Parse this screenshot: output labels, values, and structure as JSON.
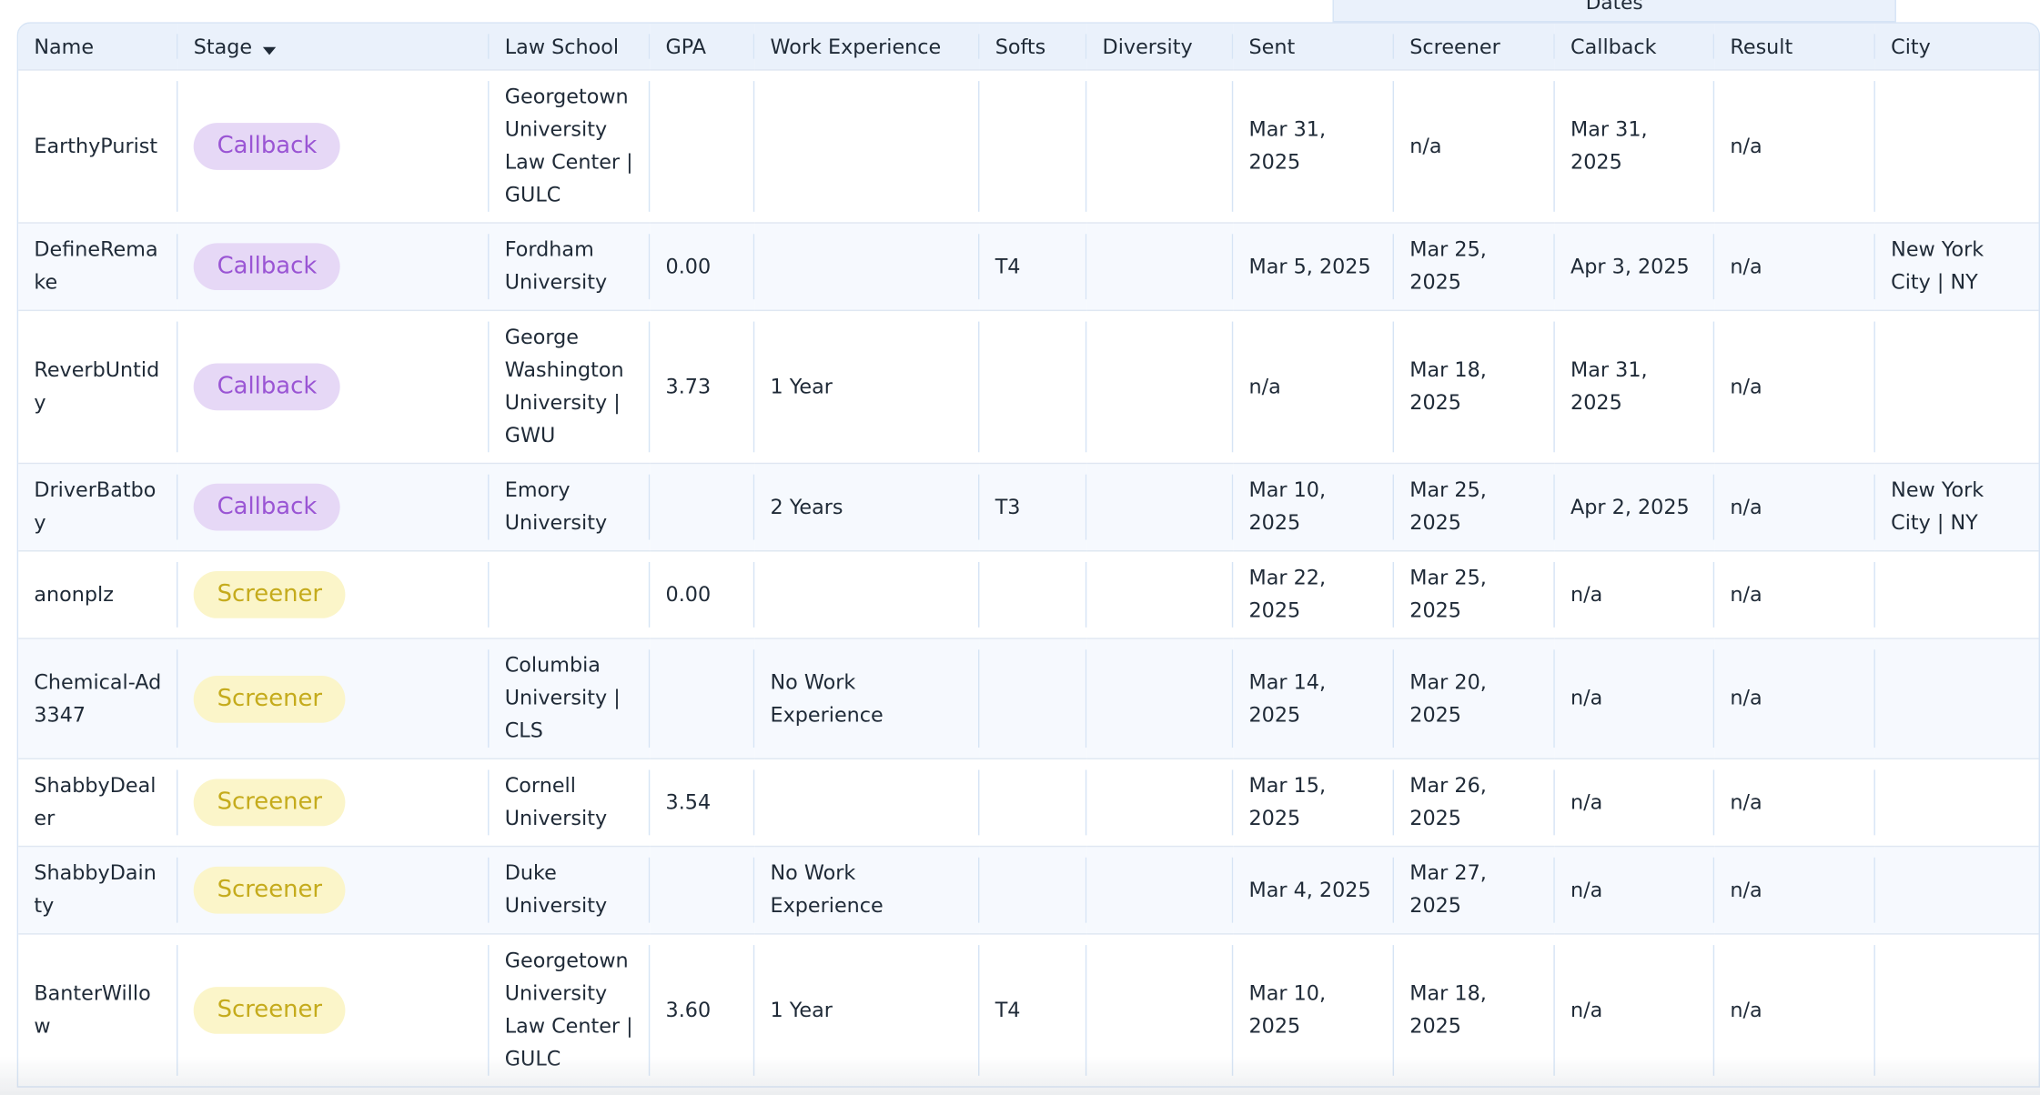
{
  "header": {
    "group": "Dates"
  },
  "table": {
    "columns": [
      {
        "key": "name",
        "label": "Name"
      },
      {
        "key": "stage",
        "label": "Stage"
      },
      {
        "key": "school",
        "label": "Law School"
      },
      {
        "key": "gpa",
        "label": "GPA"
      },
      {
        "key": "work",
        "label": "Work Experience"
      },
      {
        "key": "softs",
        "label": "Softs"
      },
      {
        "key": "diversity",
        "label": "Diversity"
      },
      {
        "key": "sent",
        "label": "Sent"
      },
      {
        "key": "screener",
        "label": "Screener"
      },
      {
        "key": "callback",
        "label": "Callback"
      },
      {
        "key": "result",
        "label": "Result"
      },
      {
        "key": "city",
        "label": "City"
      }
    ],
    "rows": [
      {
        "name": "EarthyPurist",
        "stage": "Callback",
        "school": "Georgetown University Law Center | GULC",
        "sent": "Mar 31, 2025",
        "screener": "n/a",
        "callback": "Mar 31, 2025",
        "result": "n/a"
      },
      {
        "name": "DefineRemake",
        "stage": "Callback",
        "school": "Fordham University",
        "gpa": "0.00",
        "softs": "T4",
        "sent": "Mar 5, 2025",
        "screener": "Mar 25, 2025",
        "callback": "Apr 3, 2025",
        "result": "n/a",
        "city": "New York City | NY"
      },
      {
        "name": "ReverbUntidy",
        "stage": "Callback",
        "school": "George Washington University | GWU",
        "gpa": "3.73",
        "work": "1 Year",
        "sent": "n/a",
        "screener": "Mar 18, 2025",
        "callback": "Mar 31, 2025",
        "result": "n/a"
      },
      {
        "name": "DriverBatboy",
        "stage": "Callback",
        "school": "Emory University",
        "work": "2 Years",
        "softs": "T3",
        "sent": "Mar 10, 2025",
        "screener": "Mar 25, 2025",
        "callback": "Apr 2, 2025",
        "result": "n/a",
        "city": "New York City | NY"
      },
      {
        "name": "anonplz",
        "stage": "Screener",
        "gpa": "0.00",
        "sent": "Mar 22, 2025",
        "screener": "Mar 25, 2025",
        "callback": "n/a",
        "result": "n/a"
      },
      {
        "name": "Chemical-Ad3347",
        "stage": "Screener",
        "school": "Columbia University | CLS",
        "work": "No Work Experience",
        "sent": "Mar 14, 2025",
        "screener": "Mar 20, 2025",
        "callback": "n/a",
        "result": "n/a"
      },
      {
        "name": "ShabbyDealer",
        "stage": "Screener",
        "school": "Cornell University",
        "gpa": "3.54",
        "sent": "Mar 15, 2025",
        "screener": "Mar 26, 2025",
        "callback": "n/a",
        "result": "n/a"
      },
      {
        "name": "ShabbyDainty",
        "stage": "Screener",
        "school": "Duke University",
        "work": "No Work Experience",
        "sent": "Mar 4, 2025",
        "screener": "Mar 27, 2025",
        "callback": "n/a",
        "result": "n/a"
      },
      {
        "name": "BanterWillow",
        "stage": "Screener",
        "school": "Georgetown University Law Center | GULC",
        "gpa": "3.60",
        "work": "1 Year",
        "softs": "T4",
        "sent": "Mar 10, 2025",
        "screener": "Mar 18, 2025",
        "callback": "n/a",
        "result": "n/a"
      }
    ]
  }
}
